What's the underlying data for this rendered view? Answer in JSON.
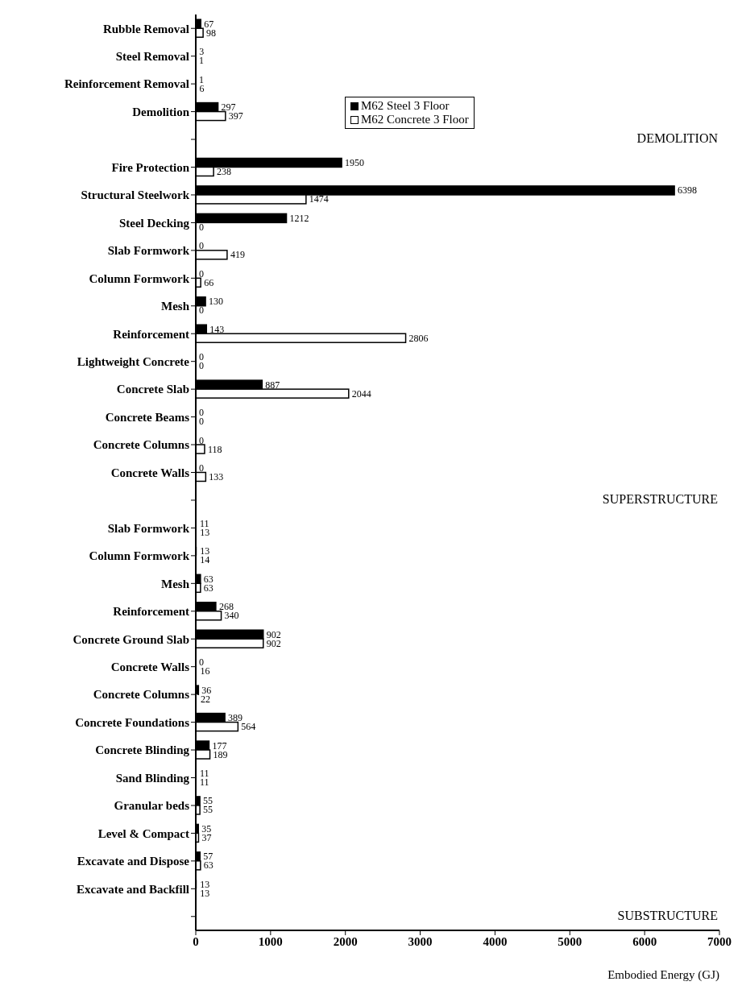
{
  "chart_data": {
    "type": "bar",
    "orientation": "horizontal",
    "xlabel": "Embodied Energy (GJ)",
    "categories": [
      "Rubble Removal",
      "Steel Removal",
      "Reinforcement Removal",
      "Demolition",
      null,
      "Fire Protection",
      "Structural Steelwork",
      "Steel Decking",
      "Slab Formwork",
      "Column Formwork",
      "Mesh",
      "Reinforcement",
      "Lightweight Concrete",
      "Concrete Slab",
      "Concrete Beams",
      "Concrete Columns",
      "Concrete Walls",
      null,
      "Slab Formwork",
      "Column Formwork",
      "Mesh",
      "Reinforcement",
      "Concrete Ground Slab",
      "Concrete Walls",
      "Concrete Columns",
      "Concrete Foundations",
      "Concrete Blinding",
      "Sand Blinding",
      "Granular beds",
      "Level & Compact",
      "Excavate and Dispose",
      "Excavate and Backfill",
      null
    ],
    "series": [
      {
        "name": "M62 Steel 3 Floor",
        "color": "#000000",
        "values": [
          67,
          3,
          1,
          297,
          null,
          1950,
          6398,
          1212,
          0,
          0,
          130,
          143,
          0,
          887,
          0,
          0,
          0,
          null,
          11,
          13,
          63,
          268,
          902,
          0,
          36,
          389,
          177,
          11,
          55,
          35,
          57,
          13,
          null
        ]
      },
      {
        "name": "M62 Concrete 3 Floor",
        "color": "#ffffff",
        "values": [
          98,
          1,
          6,
          397,
          null,
          238,
          1474,
          0,
          419,
          66,
          0,
          2806,
          0,
          2044,
          0,
          118,
          133,
          null,
          13,
          14,
          63,
          340,
          902,
          16,
          22,
          564,
          189,
          11,
          55,
          37,
          63,
          13,
          null
        ]
      }
    ],
    "xlim": [
      0,
      7000
    ],
    "xticks": [
      0,
      1000,
      2000,
      3000,
      4000,
      5000,
      6000,
      7000
    ],
    "data_labels": true,
    "legend": "top",
    "grid": false,
    "annotations": [
      "DEMOLITION",
      "SUPERSTRUCTURE",
      "SUBSTRUCTURE"
    ]
  }
}
